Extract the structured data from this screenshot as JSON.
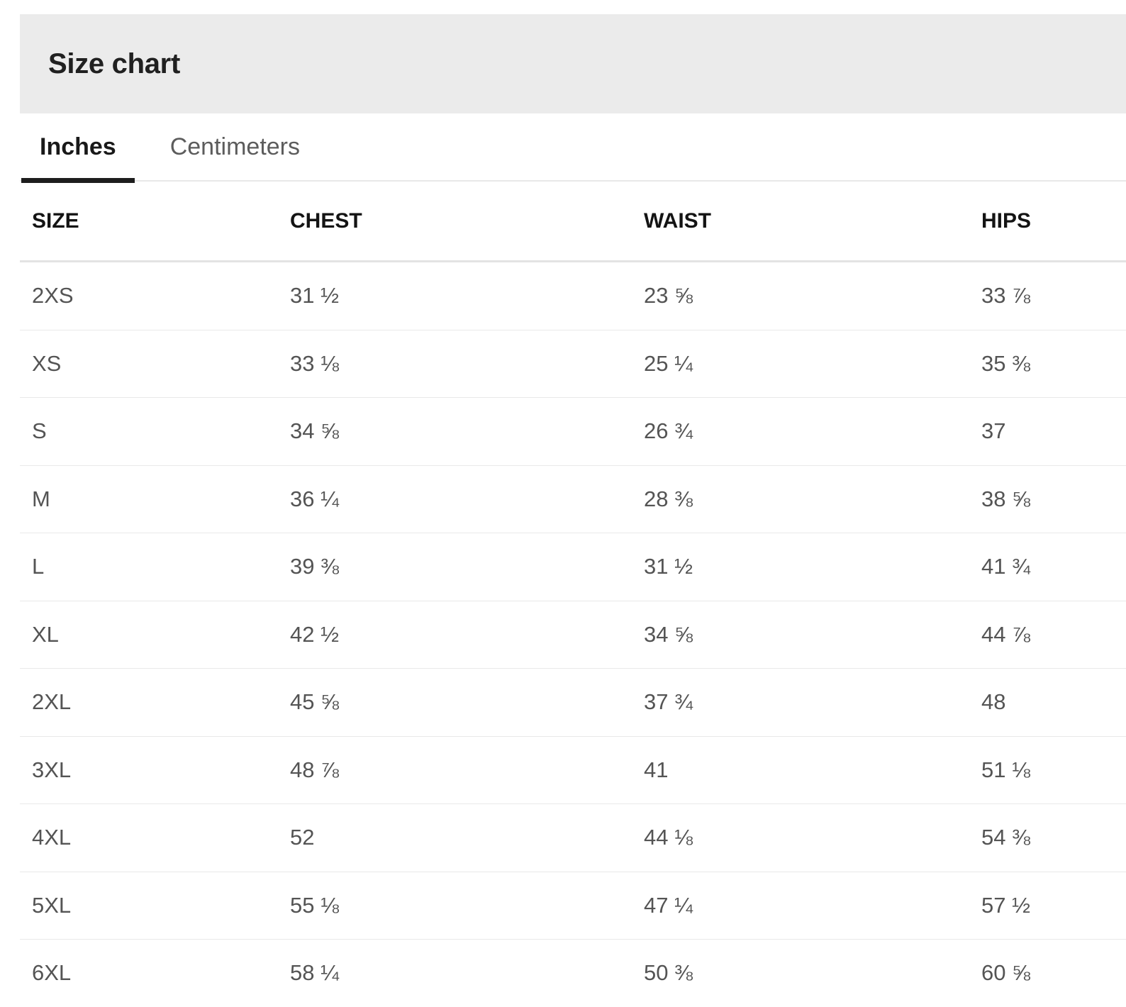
{
  "page": {
    "title": "Size chart"
  },
  "units_tabs": {
    "items": [
      {
        "label": "Inches",
        "active": true
      },
      {
        "label": "Centimeters",
        "active": false
      }
    ]
  },
  "size_table": {
    "columns": [
      "SIZE",
      "CHEST",
      "WAIST",
      "HIPS"
    ],
    "rows": [
      [
        "2XS",
        "31 ½",
        "23 ⅝",
        "33 ⅞"
      ],
      [
        "XS",
        "33 ⅛",
        "25 ¼",
        "35 ⅜"
      ],
      [
        "S",
        "34 ⅝",
        "26 ¾",
        "37"
      ],
      [
        "M",
        "36 ¼",
        "28 ⅜",
        "38 ⅝"
      ],
      [
        "L",
        "39 ⅜",
        "31 ½",
        "41 ¾"
      ],
      [
        "XL",
        "42 ½",
        "34 ⅝",
        "44 ⅞"
      ],
      [
        "2XL",
        "45 ⅝",
        "37 ¾",
        "48"
      ],
      [
        "3XL",
        "48 ⅞",
        "41",
        "51 ⅛"
      ],
      [
        "4XL",
        "52",
        "44 ⅛",
        "54 ⅜"
      ],
      [
        "5XL",
        "55 ⅛",
        "47 ¼",
        "57 ½"
      ],
      [
        "6XL",
        "58 ¼",
        "50 ⅜",
        "60 ⅝"
      ]
    ]
  },
  "colors": {
    "header_band_background": "#ebebeb",
    "title_text": "#202020",
    "active_tab_text": "#191919",
    "active_tab_underline": "#1d1d1d",
    "inactive_tab_text": "#5c5c5c",
    "table_header_text": "#141414",
    "table_cell_text": "#545454",
    "row_divider": "#e9e9e9"
  }
}
